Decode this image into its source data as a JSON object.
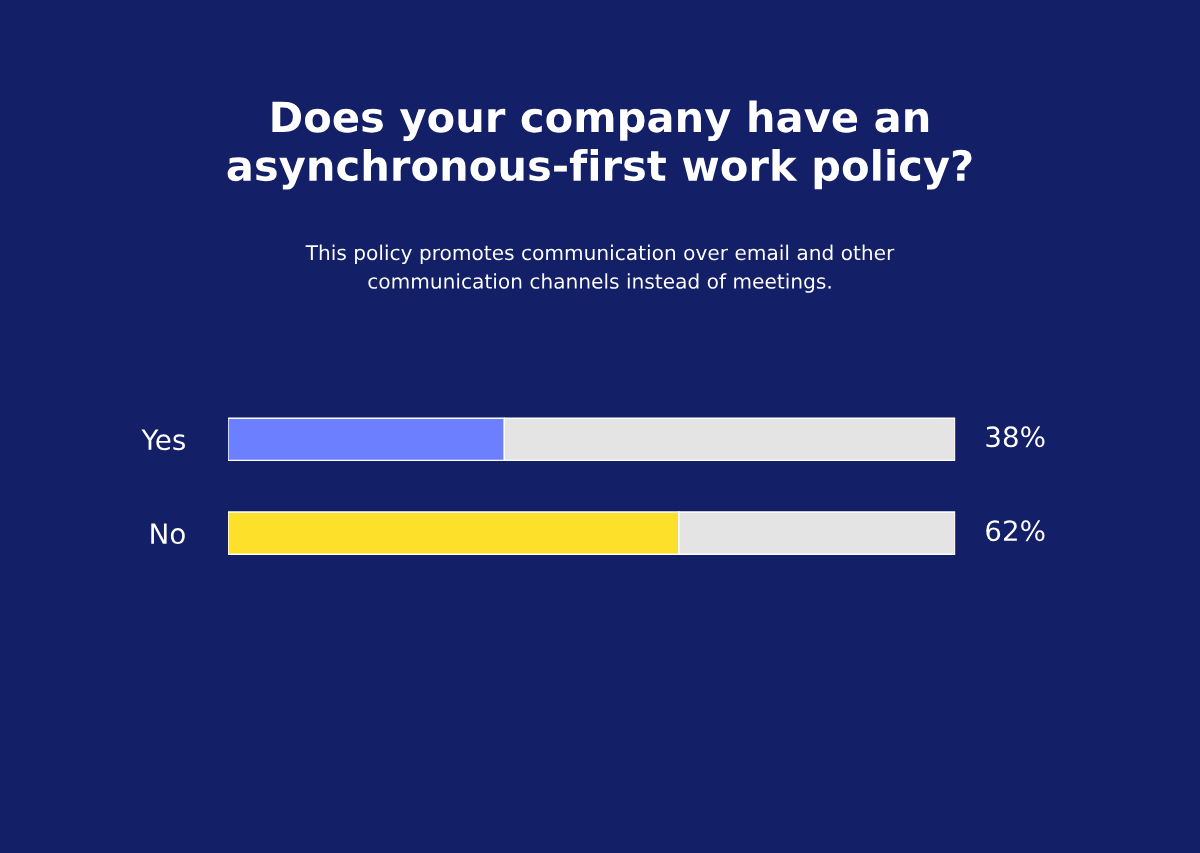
{
  "chart_data": {
    "type": "bar",
    "orientation": "horizontal",
    "stacked": true,
    "title": "Does your company have an\nasynchronous-first work policy?",
    "subtitle": "This policy promotes communication over email and other\ncommunication channels instead of meetings.",
    "categories": [
      "Yes",
      "No"
    ],
    "series": [
      {
        "colors": [
          "#6b7fff",
          "#fde02a"
        ],
        "values": [
          38,
          62
        ],
        "value_labels": [
          "38%",
          "62%"
        ]
      },
      {
        "color": "#e4e4e4",
        "values": [
          62,
          38
        ]
      }
    ],
    "xlim": [
      0,
      100
    ],
    "tick_labels": "y",
    "grid": false,
    "legend": false
  }
}
